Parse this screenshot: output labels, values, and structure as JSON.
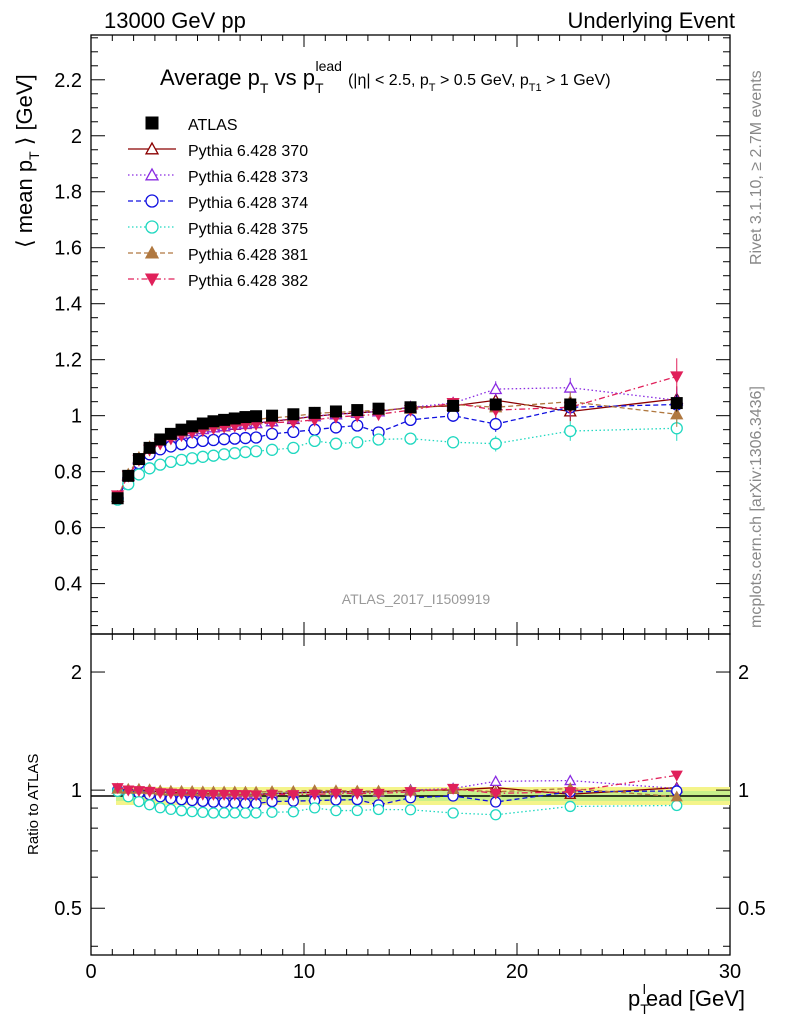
{
  "header": {
    "left": "13000 GeV pp",
    "right": "Underlying Event"
  },
  "side_texts": {
    "rivet": "Rivet 3.1.10, ≥ 2.7M events",
    "mcplots": "mcplots.cern.ch [arXiv:1306.3436]"
  },
  "chart_data": {
    "type": "scatter",
    "title": "Average p_T vs p_T^lead (|η| < 2.5, p_T > 0.5 GeV, p_T1 > 1 GeV)",
    "title_parts": {
      "main": "Average p",
      "sub1": "T",
      "vs": " vs p",
      "sub2": "T",
      "sup2": "lead",
      "cond": "(|η| < 2.5, p",
      "cond_sub": "T",
      "cond2": " > 0.5 GeV, p",
      "cond_sub2": "T1",
      "cond3": " > 1 GeV)"
    },
    "ylabel": "⟨ mean p_T ⟩ [GeV]",
    "ylabel_parts": {
      "a": "⟨ mean p",
      "sub": "T",
      "b": " ⟩ [GeV]"
    },
    "xlabel": "p_T^l ead [GeV]",
    "xlabel_parts": {
      "a": "p",
      "sub": "T",
      "sup": "l",
      "b": "ead [GeV]"
    },
    "ratio_ylabel": "Ratio to ATLAS",
    "analysis_label": "ATLAS_2017_I1509919",
    "xlim": [
      0,
      30
    ],
    "ylim": [
      0.22,
      2.36
    ],
    "ratio_ylim": [
      0.38,
      2.5
    ],
    "x_ticks": [
      "0",
      "10",
      "20",
      "30"
    ],
    "y_ticks": [
      "0.4",
      "0.6",
      "0.8",
      "1",
      "1.2",
      "1.4",
      "1.6",
      "1.8",
      "2",
      "2.2"
    ],
    "ratio_ticks": [
      "0.5",
      "1",
      "2"
    ],
    "legend_placement": "top-left",
    "x": [
      1.25,
      1.75,
      2.25,
      2.75,
      3.25,
      3.75,
      4.25,
      4.75,
      5.25,
      5.75,
      6.25,
      6.75,
      7.25,
      7.75,
      8.5,
      9.5,
      10.5,
      11.5,
      12.5,
      13.5,
      15.0,
      17.0,
      19.0,
      22.5,
      27.5
    ],
    "series": [
      {
        "name": "ATLAS",
        "color": "#000000",
        "marker": "square",
        "line": "none",
        "filled": true,
        "values": [
          0.705,
          0.785,
          0.845,
          0.885,
          0.915,
          0.935,
          0.95,
          0.962,
          0.972,
          0.98,
          0.985,
          0.99,
          0.995,
          0.998,
          1.0,
          1.005,
          1.01,
          1.015,
          1.02,
          1.025,
          1.03,
          1.035,
          1.04,
          1.04,
          1.045
        ],
        "errors": [
          0.005,
          0.005,
          0.005,
          0.005,
          0.005,
          0.005,
          0.005,
          0.005,
          0.005,
          0.005,
          0.005,
          0.005,
          0.005,
          0.005,
          0.006,
          0.006,
          0.007,
          0.008,
          0.009,
          0.01,
          0.012,
          0.015,
          0.02,
          0.025,
          0.03
        ]
      },
      {
        "name": "Pythia 6.428 370",
        "color": "#8b0000",
        "marker": "triangle-up",
        "line": "solid",
        "filled": false,
        "values": [
          0.71,
          0.785,
          0.845,
          0.882,
          0.905,
          0.922,
          0.935,
          0.945,
          0.952,
          0.958,
          0.962,
          0.967,
          0.97,
          0.973,
          0.98,
          0.988,
          0.998,
          1.005,
          1.01,
          1.015,
          1.03,
          1.035,
          1.055,
          1.015,
          1.06
        ],
        "errors": [
          0.006,
          0.005,
          0.005,
          0.005,
          0.005,
          0.005,
          0.005,
          0.005,
          0.006,
          0.006,
          0.006,
          0.006,
          0.007,
          0.007,
          0.008,
          0.009,
          0.01,
          0.012,
          0.013,
          0.015,
          0.018,
          0.022,
          0.028,
          0.035,
          0.045
        ]
      },
      {
        "name": "Pythia 6.428 373",
        "color": "#8a2be2",
        "marker": "triangle-up",
        "line": "dotted",
        "filled": false,
        "values": [
          0.71,
          0.785,
          0.845,
          0.882,
          0.905,
          0.922,
          0.935,
          0.945,
          0.952,
          0.958,
          0.963,
          0.968,
          0.971,
          0.974,
          0.98,
          0.99,
          0.998,
          1.005,
          1.01,
          1.015,
          1.03,
          1.045,
          1.095,
          1.1,
          1.055
        ],
        "errors": [
          0.006,
          0.005,
          0.005,
          0.005,
          0.005,
          0.005,
          0.005,
          0.005,
          0.006,
          0.006,
          0.006,
          0.006,
          0.007,
          0.007,
          0.008,
          0.009,
          0.01,
          0.012,
          0.013,
          0.015,
          0.018,
          0.022,
          0.028,
          0.035,
          0.045
        ]
      },
      {
        "name": "Pythia 6.428 374",
        "color": "#1010e0",
        "marker": "circle",
        "line": "dashed",
        "filled": false,
        "values": [
          0.705,
          0.775,
          0.83,
          0.862,
          0.88,
          0.89,
          0.898,
          0.905,
          0.91,
          0.913,
          0.916,
          0.918,
          0.92,
          0.922,
          0.935,
          0.942,
          0.95,
          0.958,
          0.965,
          0.94,
          0.985,
          1.0,
          0.97,
          1.03,
          1.04
        ],
        "errors": [
          0.006,
          0.005,
          0.005,
          0.005,
          0.005,
          0.005,
          0.005,
          0.005,
          0.006,
          0.006,
          0.006,
          0.006,
          0.007,
          0.007,
          0.008,
          0.009,
          0.01,
          0.012,
          0.013,
          0.015,
          0.018,
          0.022,
          0.028,
          0.035,
          0.045
        ]
      },
      {
        "name": "Pythia 6.428 375",
        "color": "#20d8c0",
        "marker": "circle",
        "line": "dotted",
        "filled": false,
        "values": [
          0.7,
          0.755,
          0.79,
          0.812,
          0.825,
          0.835,
          0.842,
          0.848,
          0.853,
          0.857,
          0.862,
          0.866,
          0.87,
          0.873,
          0.878,
          0.885,
          0.91,
          0.9,
          0.905,
          0.915,
          0.918,
          0.905,
          0.9,
          0.945,
          0.955
        ],
        "errors": [
          0.006,
          0.005,
          0.005,
          0.005,
          0.005,
          0.005,
          0.005,
          0.005,
          0.006,
          0.006,
          0.006,
          0.006,
          0.007,
          0.007,
          0.008,
          0.009,
          0.01,
          0.012,
          0.013,
          0.015,
          0.018,
          0.022,
          0.028,
          0.035,
          0.045
        ]
      },
      {
        "name": "Pythia 6.428 381",
        "color": "#b07840",
        "marker": "triangle-up",
        "line": "dashed",
        "filled": true,
        "values": [
          0.71,
          0.79,
          0.85,
          0.888,
          0.912,
          0.93,
          0.944,
          0.955,
          0.963,
          0.97,
          0.975,
          0.98,
          0.984,
          0.987,
          0.992,
          0.998,
          1.008,
          1.012,
          1.015,
          1.02,
          1.025,
          1.04,
          1.03,
          1.05,
          1.005
        ],
        "errors": [
          0.006,
          0.005,
          0.005,
          0.005,
          0.005,
          0.005,
          0.005,
          0.005,
          0.006,
          0.006,
          0.006,
          0.006,
          0.007,
          0.007,
          0.008,
          0.009,
          0.01,
          0.012,
          0.013,
          0.015,
          0.018,
          0.022,
          0.028,
          0.035,
          0.045
        ]
      },
      {
        "name": "Pythia 6.428 382",
        "color": "#e0205a",
        "marker": "triangle-down",
        "line": "dashdot",
        "filled": true,
        "values": [
          0.715,
          0.785,
          0.842,
          0.878,
          0.9,
          0.918,
          0.93,
          0.94,
          0.948,
          0.955,
          0.96,
          0.964,
          0.968,
          0.97,
          0.975,
          0.978,
          0.985,
          0.995,
          1.0,
          1.005,
          1.02,
          1.045,
          1.02,
          1.03,
          1.14
        ],
        "errors": [
          0.006,
          0.005,
          0.005,
          0.005,
          0.005,
          0.005,
          0.005,
          0.005,
          0.006,
          0.006,
          0.006,
          0.006,
          0.007,
          0.007,
          0.008,
          0.009,
          0.01,
          0.012,
          0.013,
          0.015,
          0.018,
          0.022,
          0.028,
          0.035,
          0.065
        ]
      }
    ]
  }
}
